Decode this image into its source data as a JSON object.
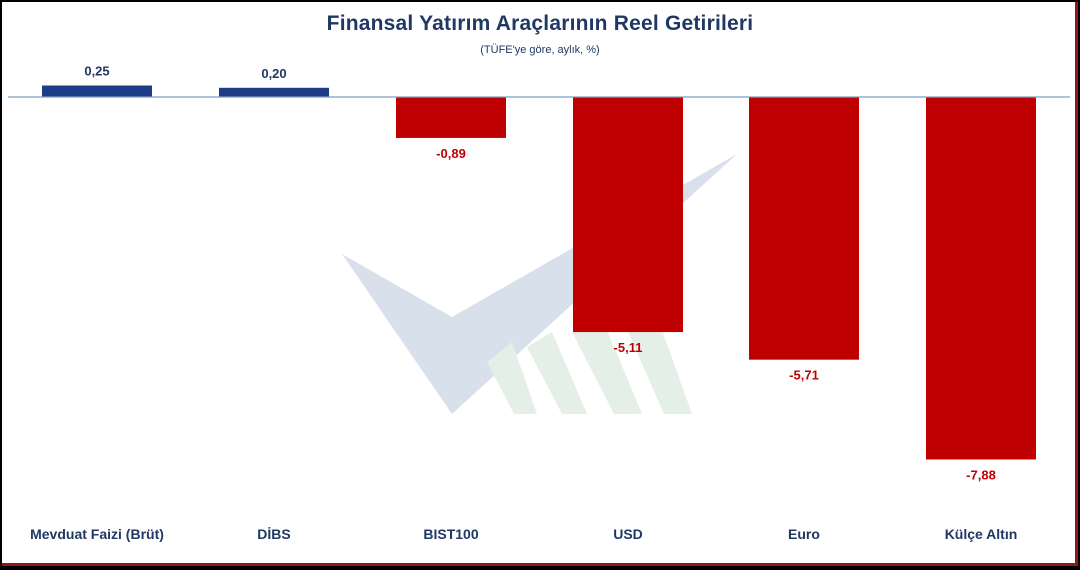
{
  "chart_data": {
    "type": "bar",
    "title": "Finansal  Yatırım  Araçlarının  Reel Getirileri",
    "subtitle": "(TÜFE'ye göre, aylık, %)",
    "categories": [
      "Mevduat Faizi (Brüt)",
      "DİBS",
      "BIST100",
      "USD",
      "Euro",
      "Külçe Altın"
    ],
    "values": [
      0.25,
      0.2,
      -0.89,
      -5.11,
      -5.71,
      -7.88
    ],
    "value_labels": [
      "0,25",
      "0,20",
      "-0,89",
      "-5,11",
      "-5,71",
      "-7,88"
    ],
    "ylim": [
      -8.7,
      0.5
    ],
    "xlabel": "",
    "ylabel": "",
    "grid": false,
    "legend": "none"
  },
  "colors": {
    "positive": "#1f3c88",
    "negative": "#c00000",
    "positive_label": "#1f3864",
    "negative_label": "#c00000",
    "axis": "#7f9fc0",
    "title": "#1f3864"
  }
}
